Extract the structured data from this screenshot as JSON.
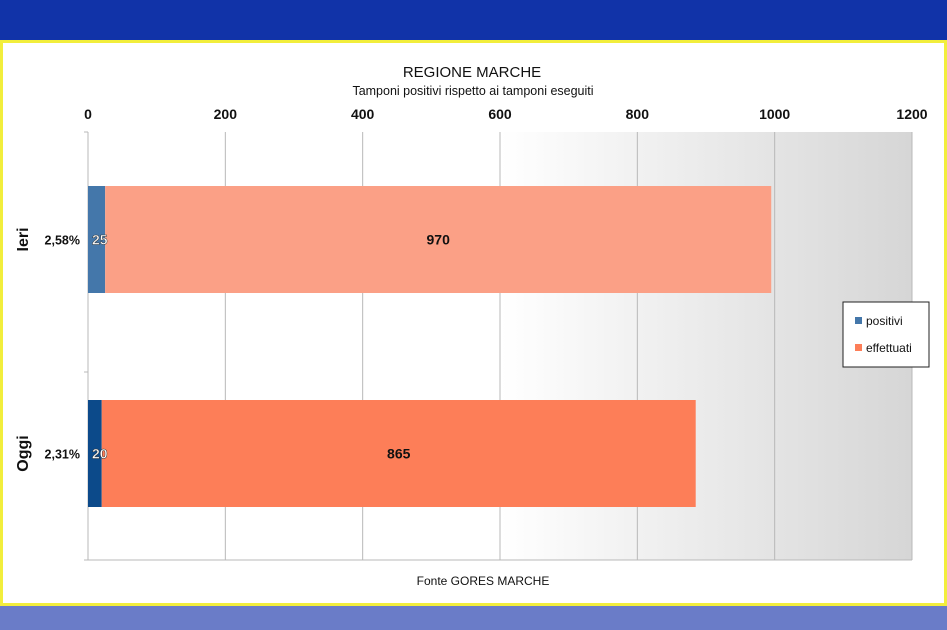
{
  "chart_data": {
    "type": "bar",
    "orientation": "horizontal",
    "stacked": true,
    "title": "REGIONE MARCHE",
    "subtitle": "Tamponi positivi rispetto ai tamponi eseguiti",
    "footer": "Fonte GORES MARCHE",
    "xlim": [
      0,
      1200
    ],
    "xticks": [
      "0",
      "200",
      "400",
      "600",
      "800",
      "1000",
      "1200"
    ],
    "xtick_values": [
      0,
      200,
      400,
      600,
      800,
      1000,
      1200
    ],
    "grid": true,
    "legend_position": "right",
    "categories": [
      {
        "label": "Ieri",
        "percent": "2,58%"
      },
      {
        "label": "Oggi",
        "percent": "2,31%"
      }
    ],
    "series": [
      {
        "name": "positivi",
        "values": [
          25,
          20
        ],
        "labels": [
          "25",
          "20"
        ],
        "colors": [
          "#4477aa",
          "#0c4a8a"
        ]
      },
      {
        "name": "effettuati",
        "values": [
          970,
          865
        ],
        "labels": [
          "970",
          "865"
        ],
        "colors": [
          "#fba086",
          "#fd7e58"
        ]
      }
    ],
    "legend": [
      {
        "name": "positivi",
        "color": "#4477aa"
      },
      {
        "name": "effettuati",
        "color": "#fd7e58"
      }
    ]
  }
}
